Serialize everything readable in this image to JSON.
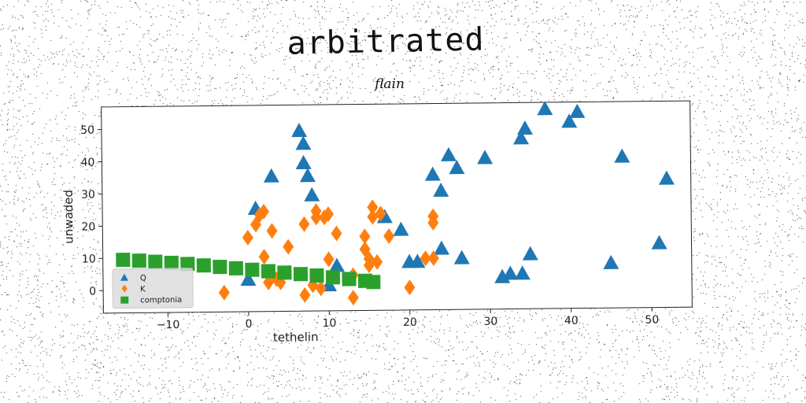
{
  "chart_data": {
    "type": "scatter",
    "title": "arbitrated",
    "subtitle": "flain",
    "xlabel": "tethelin",
    "ylabel": "unwaded",
    "xlim": [
      -18,
      55
    ],
    "ylim": [
      -7,
      57
    ],
    "xticks": [
      -10,
      0,
      10,
      20,
      30,
      40,
      50
    ],
    "xtick_labels": [
      "−10",
      "0",
      "10",
      "20",
      "30",
      "40",
      "50"
    ],
    "yticks": [
      0,
      10,
      20,
      30,
      40,
      50
    ],
    "ytick_labels": [
      "0",
      "10",
      "20",
      "30",
      "40",
      "50"
    ],
    "grid": false,
    "legend_position": "lower-left",
    "series": [
      {
        "name": "Q",
        "marker": "triangle",
        "color": "#1f77b4",
        "points": [
          [
            0,
            3
          ],
          [
            1,
            25
          ],
          [
            3,
            35
          ],
          [
            6.5,
            49
          ],
          [
            7,
            45
          ],
          [
            7,
            39
          ],
          [
            7.5,
            35
          ],
          [
            8,
            29
          ],
          [
            10,
            1
          ],
          [
            11,
            7
          ],
          [
            17,
            22
          ],
          [
            19,
            18
          ],
          [
            20,
            8
          ],
          [
            21,
            8
          ],
          [
            23,
            35
          ],
          [
            24,
            12
          ],
          [
            24,
            30
          ],
          [
            25,
            41
          ],
          [
            26,
            37
          ],
          [
            26.5,
            9
          ],
          [
            29.5,
            40
          ],
          [
            31.5,
            3
          ],
          [
            32.5,
            4
          ],
          [
            34,
            4
          ],
          [
            34,
            46
          ],
          [
            34.5,
            49
          ],
          [
            35,
            10
          ],
          [
            37,
            55
          ],
          [
            40,
            51
          ],
          [
            41,
            54
          ],
          [
            45,
            7
          ],
          [
            46.5,
            40
          ],
          [
            51,
            13
          ],
          [
            52,
            33
          ]
        ]
      },
      {
        "name": "K",
        "marker": "thin_diamond",
        "color": "#ff7f0e",
        "points": [
          [
            -3,
            -1
          ],
          [
            0,
            16
          ],
          [
            1,
            20
          ],
          [
            1.5,
            23
          ],
          [
            2,
            24
          ],
          [
            2,
            10
          ],
          [
            2.5,
            2
          ],
          [
            3,
            18
          ],
          [
            3.5,
            3
          ],
          [
            4,
            2
          ],
          [
            5,
            13
          ],
          [
            7,
            20
          ],
          [
            7,
            -2
          ],
          [
            8,
            1
          ],
          [
            8.5,
            24
          ],
          [
            8.5,
            22
          ],
          [
            9,
            0
          ],
          [
            9.5,
            22
          ],
          [
            10,
            23
          ],
          [
            10,
            9
          ],
          [
            11,
            17
          ],
          [
            13,
            4
          ],
          [
            13,
            -3
          ],
          [
            14.5,
            16
          ],
          [
            14.5,
            12
          ],
          [
            15,
            7
          ],
          [
            15,
            9
          ],
          [
            15.5,
            25
          ],
          [
            15.5,
            22
          ],
          [
            16,
            8
          ],
          [
            16.5,
            23
          ],
          [
            17.5,
            16
          ],
          [
            20,
            0
          ],
          [
            22,
            9
          ],
          [
            23,
            9
          ],
          [
            23,
            22
          ],
          [
            23,
            20
          ]
        ]
      },
      {
        "name": "comptonia",
        "marker": "square",
        "color": "#2ca02c",
        "points": [
          [
            -15.5,
            9.5
          ],
          [
            -13.5,
            9.2
          ],
          [
            -11.5,
            8.8
          ],
          [
            -9.5,
            8.4
          ],
          [
            -7.5,
            8.0
          ],
          [
            -5.5,
            7.5
          ],
          [
            -3.5,
            7.0
          ],
          [
            -1.5,
            6.5
          ],
          [
            0.5,
            6.0
          ],
          [
            2.5,
            5.5
          ],
          [
            4.5,
            5.0
          ],
          [
            6.5,
            4.5
          ],
          [
            8.5,
            4.0
          ],
          [
            10.5,
            3.4
          ],
          [
            12.5,
            2.8
          ],
          [
            14.5,
            2.2
          ],
          [
            15.5,
            1.8
          ]
        ]
      }
    ]
  }
}
